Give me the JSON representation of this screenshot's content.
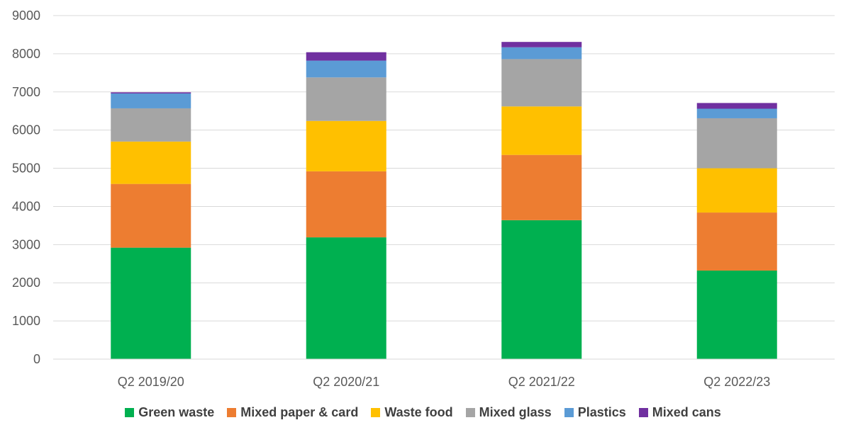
{
  "chart_data": {
    "type": "bar",
    "stacked": true,
    "categories": [
      "Q2 2019/20",
      "Q2 2020/21",
      "Q2 2021/22",
      "Q2 2022/23"
    ],
    "series": [
      {
        "name": "Green waste",
        "color": "#00B050",
        "values": [
          2920,
          3190,
          3640,
          2320
        ]
      },
      {
        "name": "Mixed paper & card",
        "color": "#ED7D31",
        "values": [
          1670,
          1730,
          1710,
          1520
        ]
      },
      {
        "name": "Waste food",
        "color": "#FFC000",
        "values": [
          1110,
          1320,
          1270,
          1160
        ]
      },
      {
        "name": "Mixed glass",
        "color": "#A5A5A5",
        "values": [
          870,
          1140,
          1240,
          1310
        ]
      },
      {
        "name": "Plastics",
        "color": "#5B9BD5",
        "values": [
          390,
          440,
          310,
          250
        ]
      },
      {
        "name": "Mixed cans",
        "color": "#7030A0",
        "values": [
          30,
          220,
          140,
          150
        ]
      }
    ],
    "ylim": [
      0,
      9000
    ],
    "yticks": [
      "0",
      "1000",
      "2000",
      "3000",
      "4000",
      "5000",
      "6000",
      "7000",
      "8000",
      "9000"
    ],
    "grid": true,
    "legend_position": "bottom"
  }
}
